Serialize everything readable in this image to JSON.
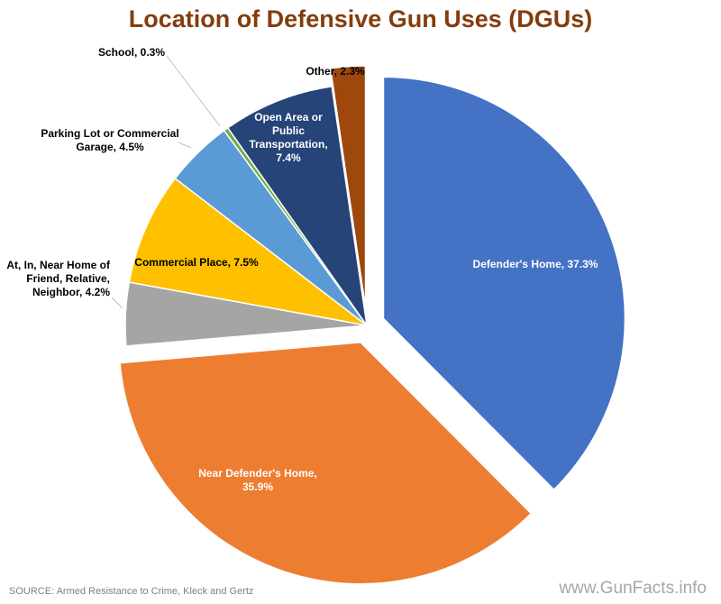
{
  "chart_data": {
    "type": "pie",
    "title": "Location of Defensive Gun Uses (DGUs)",
    "slices": [
      {
        "label": "Defender's Home, 37.3%",
        "value": 37.3,
        "color": "#4472C4",
        "exploded": true
      },
      {
        "label": "Near Defender's Home, 35.9%",
        "value": 35.9,
        "color": "#ED7D31",
        "exploded": true
      },
      {
        "label": "At, In, Near Home of Friend, Relative, Neighbor, 4.2%",
        "value": 4.2,
        "color": "#A5A5A5",
        "exploded": false
      },
      {
        "label": "Commercial Place, 7.5%",
        "value": 7.5,
        "color": "#FFC000",
        "exploded": false
      },
      {
        "label": "Parking Lot or Commercial Garage, 4.5%",
        "value": 4.5,
        "color": "#5B9BD5",
        "exploded": false
      },
      {
        "label": "School, 0.3%",
        "value": 0.3,
        "color": "#70AD47",
        "exploded": false
      },
      {
        "label": "Open Area or Public Transportation, 7.4%",
        "value": 7.4,
        "color": "#264478",
        "exploded": false
      },
      {
        "label": "Other, 2.3%",
        "value": 2.3,
        "color": "#9E480E",
        "exploded": true
      }
    ],
    "legend": "none"
  },
  "colors": {
    "title": "#843C0C",
    "label_dark": "#000000",
    "label_light": "#ffffff"
  },
  "footer": {
    "source": "SOURCE: Armed Resistance to Crime, Kleck and Gertz",
    "watermark": "www.GunFacts.info"
  }
}
